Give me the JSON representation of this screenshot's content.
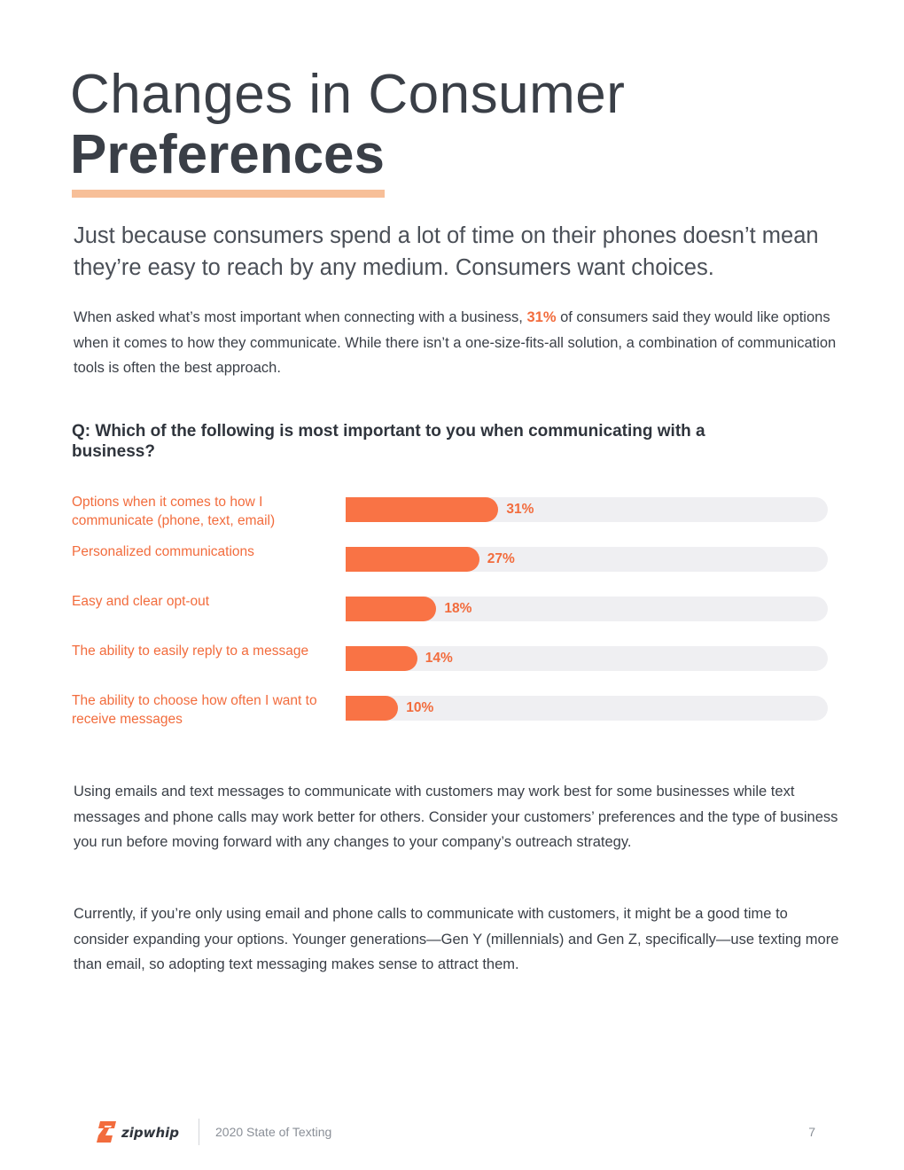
{
  "title": {
    "line1": "Changes in Consumer",
    "line2": "Preferences"
  },
  "lead": "Just because consumers spend a lot of time on their phones doesn’t mean they’re easy to reach by any medium. Consumers want choices.",
  "paragraph1": {
    "before": "When asked what’s most important when connecting with a business, ",
    "highlight": "31%",
    "after": " of consumers said they would like options when it comes to how they communicate. While there isn’t a one-size-fits-all solution, a combination of communication tools is often the best approach."
  },
  "question": "Q: Which of the following is most important to you when communicating with a business?",
  "chart_data": {
    "type": "bar",
    "orientation": "horizontal",
    "categories": [
      "Options when it comes to how I communicate (phone, text, email)",
      "Personalized communications",
      "Easy and clear opt-out",
      "The ability to easily reply to a message",
      "The ability to choose how often I want to receive messages"
    ],
    "values": [
      31,
      27,
      18,
      14,
      10
    ],
    "value_labels": [
      "31%",
      "27%",
      "18%",
      "14%",
      "10%"
    ],
    "xlim": [
      -1,
      100
    ],
    "bar_color": "#f97345",
    "track_color": "#efeff2",
    "label_color": "#f26c3d"
  },
  "paragraph2": "Using emails and text messages to communicate with customers may work best for some businesses while text messages and phone calls may work better for others. Consider your customers’ preferences and the type of business you run before moving forward with any changes to your company’s outreach strategy.",
  "paragraph3": "Currently, if you’re only using email and phone calls to communicate with customers, it might be a good time to consider expanding your options. Younger generations—Gen Y (millennials) and Gen Z, specifically—use texting more than email, so adopting text messaging makes sense to attract them.",
  "footer": {
    "logo_text": "zipwhip",
    "logo_icon": "zipwhip-logo-icon",
    "publication": "2020 State of Texting",
    "page_number": "7"
  },
  "colors": {
    "accent": "#f26c3d",
    "underline": "#f7bf98",
    "text": "#3a3f47"
  }
}
